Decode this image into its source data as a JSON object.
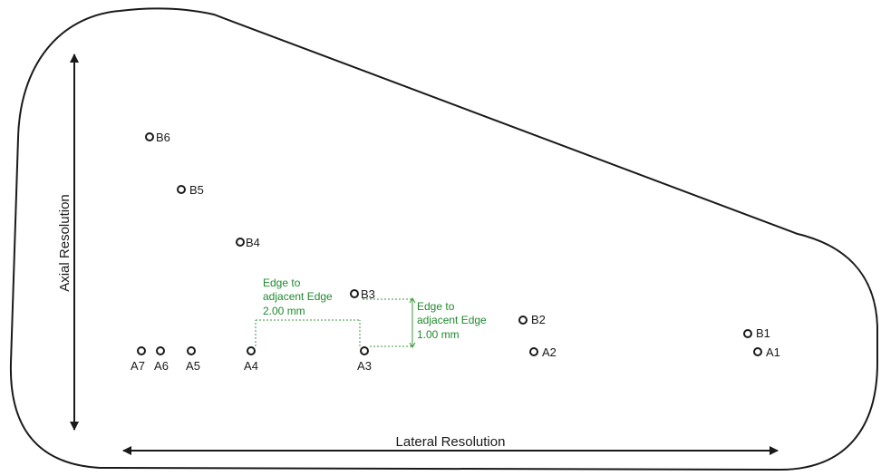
{
  "axes": {
    "axial_label": "Axial Resolution",
    "lateral_label": "Lateral Resolution"
  },
  "targets_a": [
    "A1",
    "A2",
    "A3",
    "A4",
    "A5",
    "A6",
    "A7"
  ],
  "targets_b": [
    "B1",
    "B2",
    "B3",
    "B4",
    "B5",
    "B6"
  ],
  "annotation_lateral": {
    "line1": "Edge to",
    "line2": "adjacent Edge",
    "line3": "2.00 mm"
  },
  "annotation_axial": {
    "line1": "Edge to",
    "line2": "adjacent Edge",
    "line3": "1.00 mm"
  },
  "colors": {
    "outline": "#1a1a1a",
    "annotation": "#1f8a2e"
  }
}
